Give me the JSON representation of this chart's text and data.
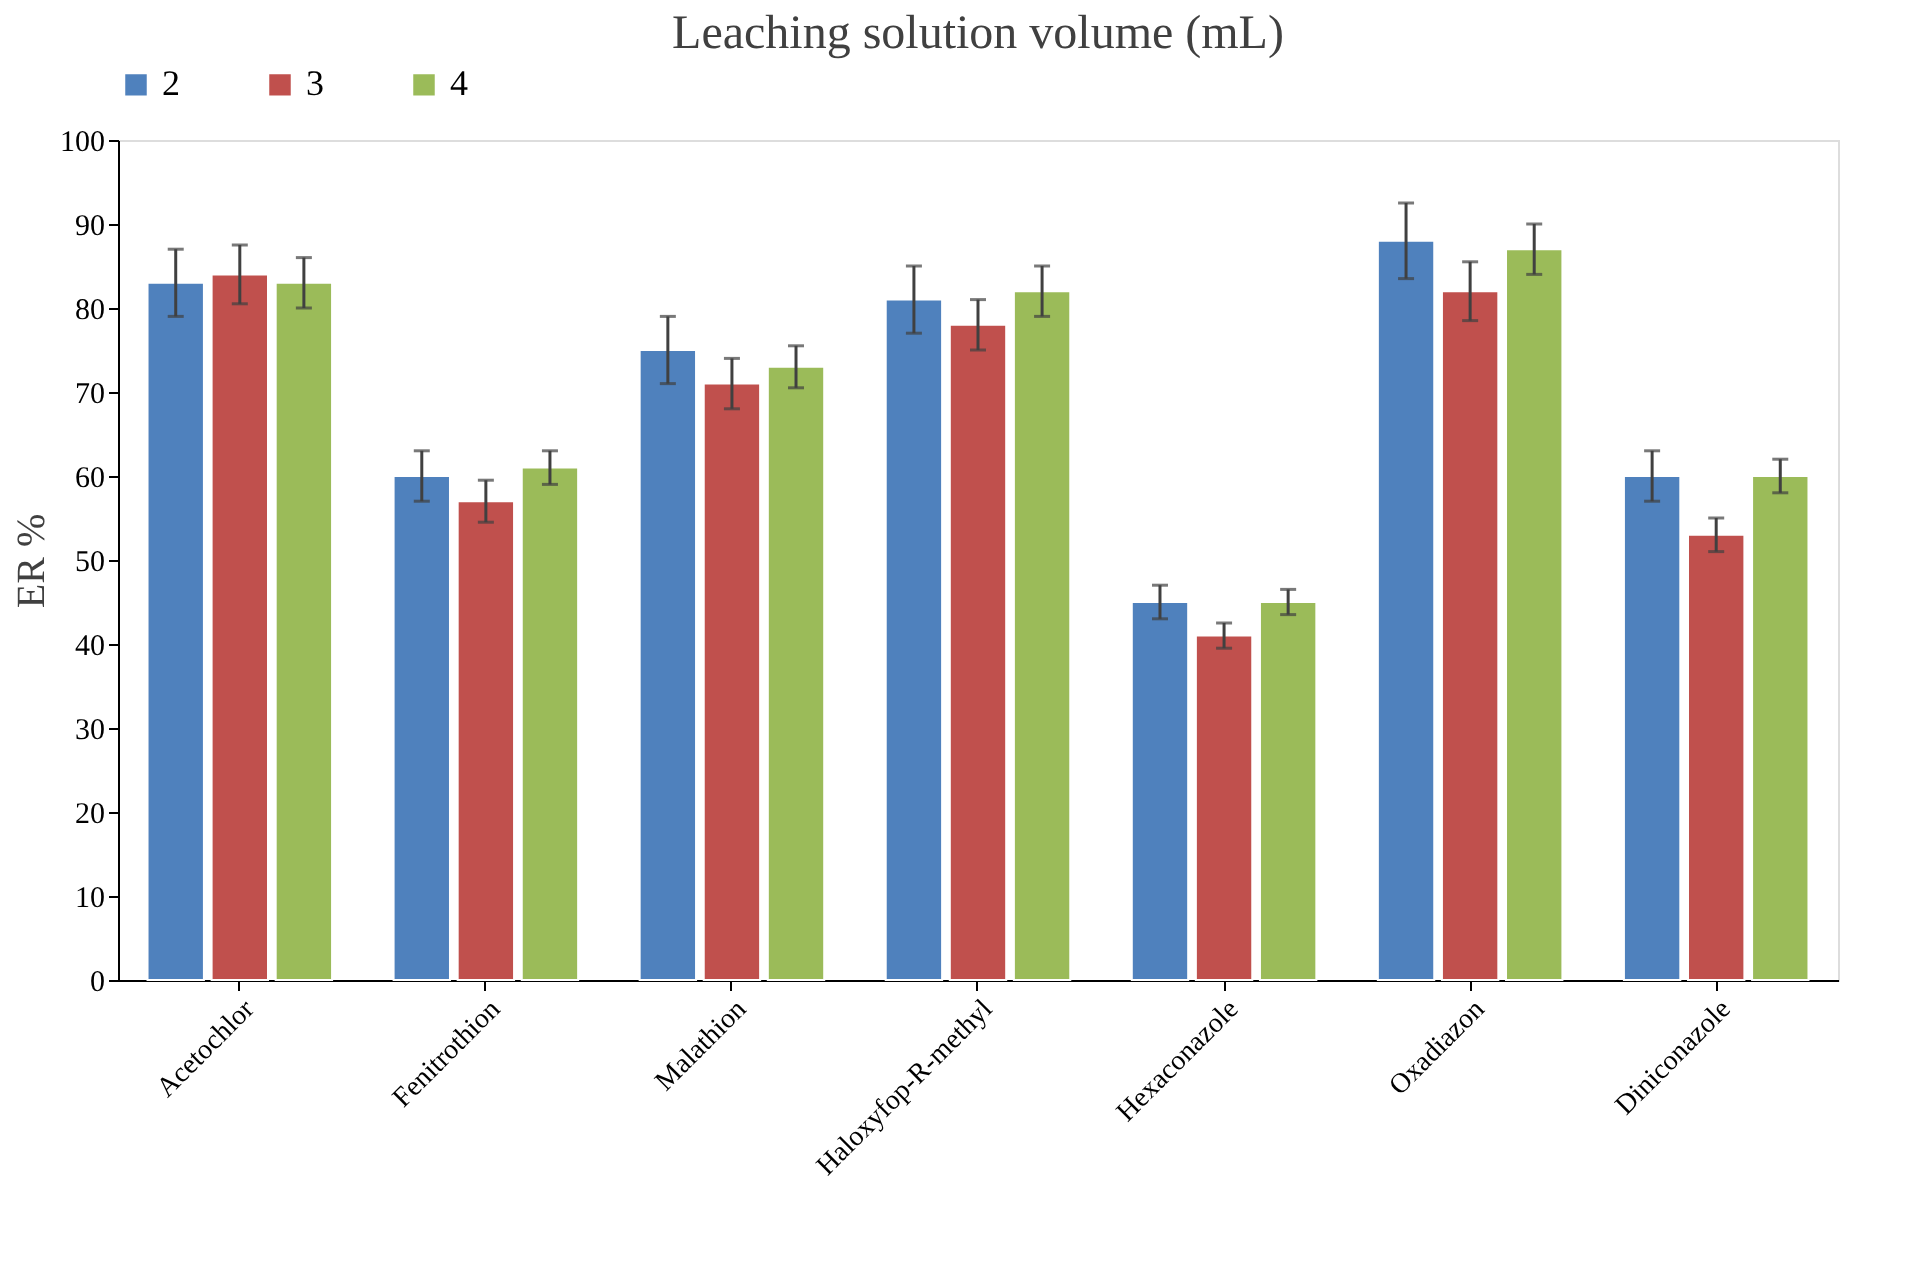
{
  "chart_data": {
    "type": "bar",
    "title": "Leaching solution volume (mL)",
    "ylabel": "ER %",
    "categories": [
      "Acetochlor",
      "Fenitrothion",
      "Malathion",
      "Haloxyfop-R-methyl",
      "Hexaconazole",
      "Oxadiazon",
      "Diniconazole"
    ],
    "series": [
      {
        "name": "2",
        "color": "#4f81bd",
        "values": [
          83,
          60,
          75,
          81,
          45,
          88,
          60
        ],
        "errors": [
          4,
          3,
          4,
          4,
          2,
          4.5,
          3
        ]
      },
      {
        "name": "3",
        "color": "#c0504d",
        "values": [
          84,
          57,
          71,
          78,
          41,
          82,
          53
        ],
        "errors": [
          3.5,
          2.5,
          3,
          3,
          1.5,
          3.5,
          2
        ]
      },
      {
        "name": "4",
        "color": "#9bbb59",
        "values": [
          83,
          61,
          73,
          82,
          45,
          87,
          60
        ],
        "errors": [
          3,
          2,
          2.5,
          3,
          1.5,
          3,
          2
        ]
      }
    ],
    "ylim": [
      0,
      100
    ],
    "yticks": [
      0,
      10,
      20,
      30,
      40,
      50,
      60,
      70,
      80,
      90,
      100
    ],
    "grid": false,
    "legend": "top"
  }
}
